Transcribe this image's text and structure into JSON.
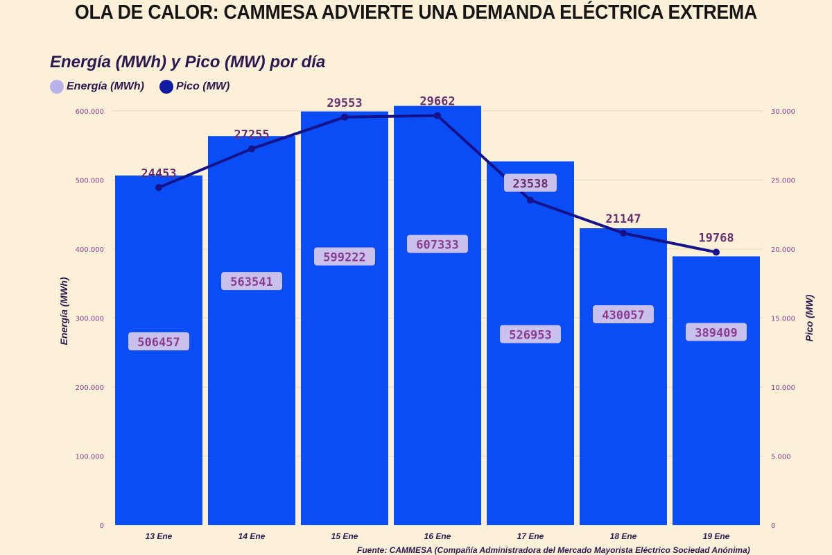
{
  "header": {
    "title": "OLA DE CALOR: CAMMESA ADVIERTE UNA DEMANDA ELÉCTRICA EXTREMA",
    "subtitle": "Energía (MWh) y Pico (MW) por día"
  },
  "legend": {
    "items": [
      {
        "label": "Energía (MWh)",
        "color": "#b7b2ea"
      },
      {
        "label": "Pico (MW)",
        "color": "#0f1aa0"
      }
    ]
  },
  "footer": {
    "source": "Fuente: CAMMESA (Compañía Administradora del Mercado Mayorista Eléctrico Sociedad Anónima)"
  },
  "colors": {
    "bar": "#0a4df5",
    "line": "#15128a",
    "label_bg": "#c9c0ec",
    "grid": "#ecd9c2",
    "background": "#fcf1d8"
  },
  "chart_data": {
    "type": "bar",
    "title": "Energía (MWh) y Pico (MW) por día",
    "categories": [
      "13 Ene",
      "14 Ene",
      "15 Ene",
      "16 Ene",
      "17 Ene",
      "18 Ene",
      "19 Ene"
    ],
    "series": [
      {
        "name": "Energía (MWh)",
        "type": "bar",
        "axis": "left",
        "values": [
          506457,
          563541,
          599222,
          607333,
          526953,
          430057,
          389409
        ],
        "labels": [
          "506457",
          "563541",
          "599222",
          "607333",
          "526953",
          "430057",
          "389409"
        ]
      },
      {
        "name": "Pico (MW)",
        "type": "line",
        "axis": "right",
        "values": [
          24453,
          27255,
          29553,
          29662,
          23538,
          21147,
          19768
        ],
        "labels": [
          "24453",
          "27255",
          "29553",
          "29662",
          "23538",
          "21147",
          "19768"
        ]
      }
    ],
    "ylabel": "Energía (MWh)",
    "y2label": "Pico (MW)",
    "ylim": [
      0,
      620000
    ],
    "y2lim": [
      0,
      31000
    ],
    "yticks": [
      0,
      100000,
      200000,
      300000,
      400000,
      500000,
      600000
    ],
    "ytick_labels": [
      "0",
      "100.000",
      "200.000",
      "300.000",
      "400.000",
      "500.000",
      "600.000"
    ],
    "y2ticks": [
      0,
      5000,
      10000,
      15000,
      20000,
      25000,
      30000
    ],
    "y2tick_labels": [
      "0",
      "5.000",
      "10.000",
      "15.000",
      "20.000",
      "25.000",
      "30.000"
    ],
    "grid": true,
    "legend_position": "top-left"
  }
}
